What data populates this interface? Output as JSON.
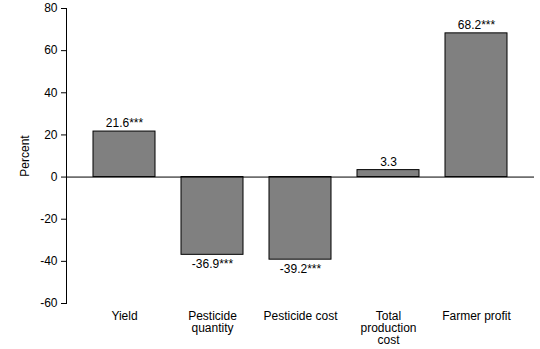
{
  "chart_data": {
    "type": "bar",
    "y_label": "Percent",
    "categories": [
      "Yield",
      "Pesticide quantity",
      "Pesticide cost",
      "Total production cost",
      "Farmer profit"
    ],
    "values": [
      21.6,
      -36.9,
      -39.2,
      3.3,
      68.2
    ],
    "value_labels": [
      "21.6***",
      "-36.9***",
      "-39.2***",
      "3.3",
      "68.2***"
    ],
    "data_labels": true,
    "color": "#808080",
    "ylim": [
      -60,
      80
    ],
    "yticks": [
      -60,
      -40,
      -20,
      0,
      20,
      40,
      60,
      80
    ],
    "grid": false
  }
}
